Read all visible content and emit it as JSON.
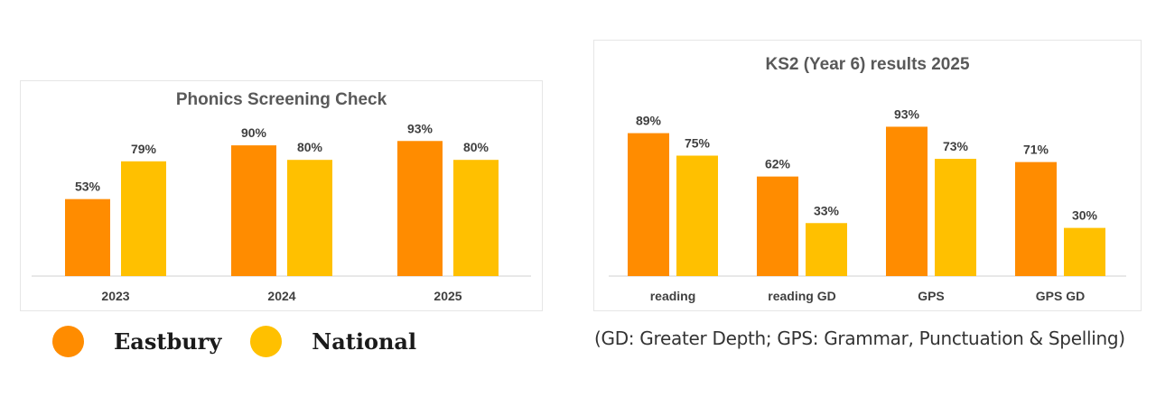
{
  "colors": {
    "eastbury": "#FF8C00",
    "national": "#FFC000",
    "axis": "#d9d9d9"
  },
  "chart_data": [
    {
      "type": "bar",
      "title": "Phonics Screening Check",
      "categories": [
        "2023",
        "2024",
        "2025"
      ],
      "series": [
        {
          "name": "Eastbury",
          "values": [
            53,
            90,
            93
          ],
          "labels": [
            "53%",
            "90%",
            "93%"
          ]
        },
        {
          "name": "National",
          "values": [
            79,
            80,
            80
          ],
          "labels": [
            "79%",
            "80%",
            "80%"
          ]
        }
      ],
      "ylim": [
        0,
        100
      ],
      "grid": false
    },
    {
      "type": "bar",
      "title": "KS2 (Year 6) results 2025",
      "categories": [
        "reading",
        "reading GD",
        "GPS",
        "GPS GD"
      ],
      "series": [
        {
          "name": "Eastbury",
          "values": [
            89,
            62,
            93,
            71
          ],
          "labels": [
            "89%",
            "62%",
            "93%",
            "71%"
          ]
        },
        {
          "name": "National",
          "values": [
            75,
            33,
            73,
            30
          ],
          "labels": [
            "75%",
            "33%",
            "73%",
            "30%"
          ]
        }
      ],
      "ylim": [
        0,
        100
      ],
      "grid": false
    }
  ],
  "legend": [
    {
      "label": "Eastbury",
      "color": "#FF8C00"
    },
    {
      "label": "National",
      "color": "#FFC000"
    }
  ],
  "footnote": "(GD: Greater Depth; GPS: Grammar, Punctuation & Spelling)"
}
